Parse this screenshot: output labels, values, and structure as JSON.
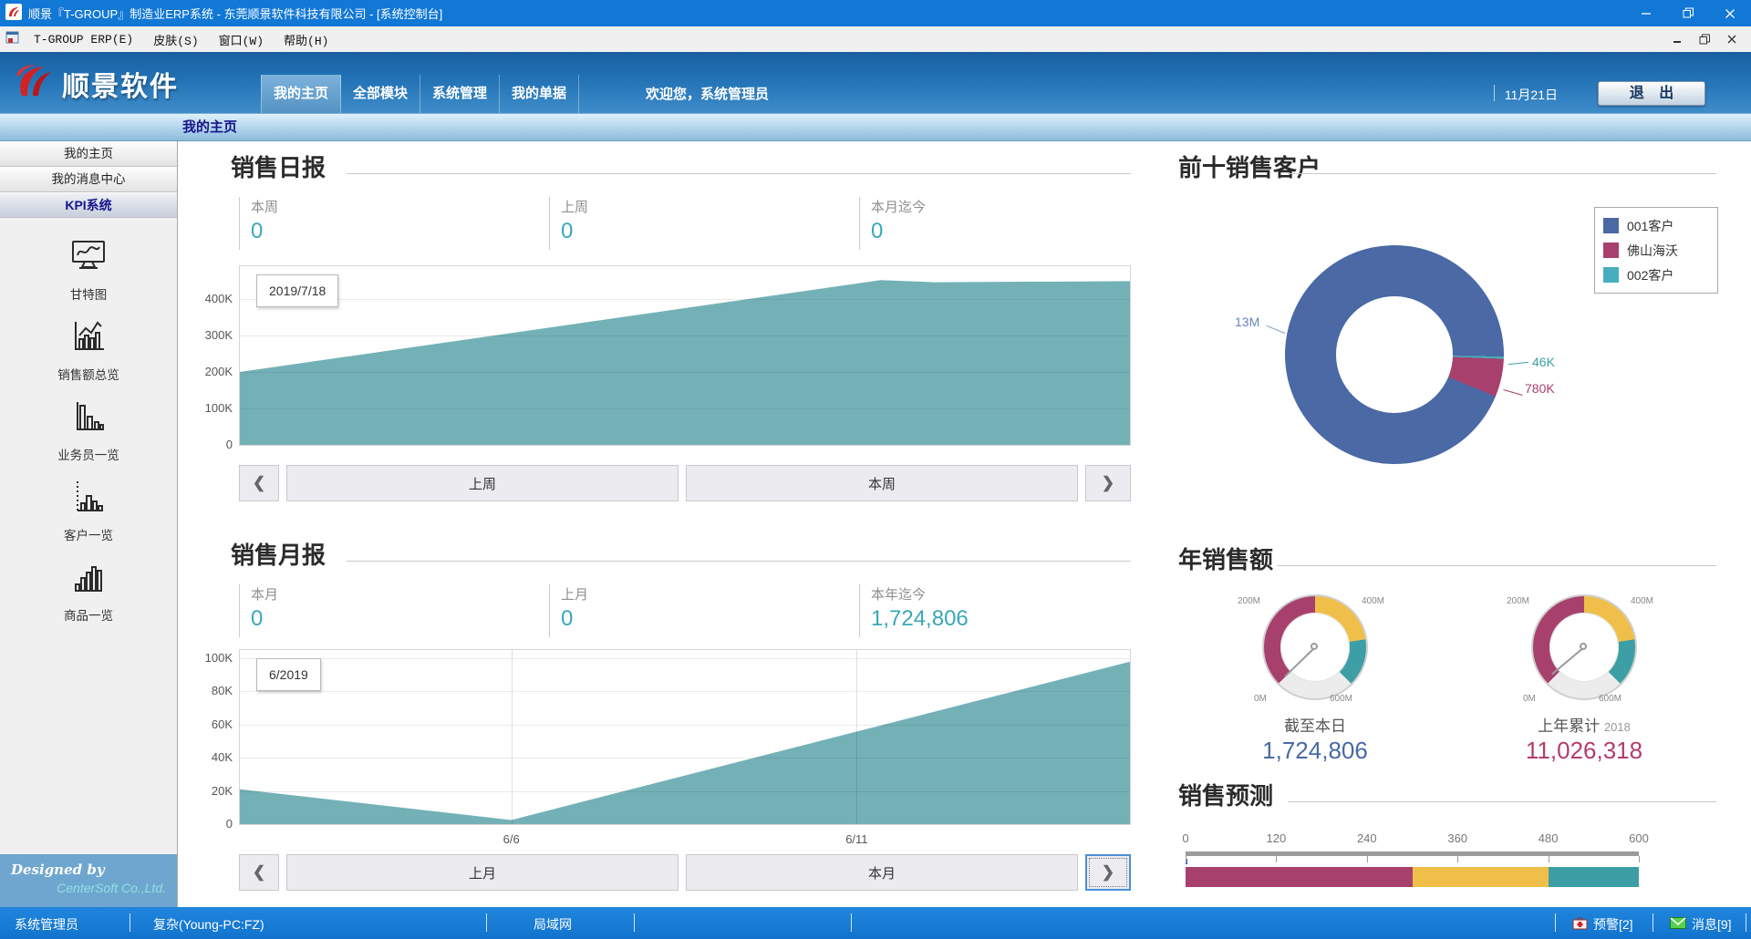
{
  "window": {
    "title": "顺景『T-GROUP』制造业ERP系统 - 东莞顺景软件科技有限公司 - [系统控制台]"
  },
  "menubar": {
    "items": [
      "T-GROUP ERP(E)",
      "皮肤(S)",
      "窗口(W)",
      "帮助(H)"
    ]
  },
  "header": {
    "logo": "顺景软件",
    "tabs": [
      {
        "label": "我的主页"
      },
      {
        "label": "全部模块"
      },
      {
        "label": "系统管理"
      },
      {
        "label": "我的单据"
      }
    ],
    "welcome": "欢迎您，系统管理员",
    "date": "11月21日",
    "exit": "退 出"
  },
  "tabstrip": {
    "active": "我的主页"
  },
  "sidebar": {
    "nav": [
      {
        "label": "我的主页"
      },
      {
        "label": "我的消息中心"
      },
      {
        "label": "KPI系统"
      }
    ],
    "modules": [
      {
        "label": "甘特图",
        "icon": "gantt-chart-icon"
      },
      {
        "label": "销售额总览",
        "icon": "sales-overview-icon"
      },
      {
        "label": "业务员一览",
        "icon": "salesman-list-icon"
      },
      {
        "label": "客户一览",
        "icon": "customer-list-icon"
      },
      {
        "label": "商品一览",
        "icon": "product-list-icon"
      }
    ],
    "designed_by": "Designed by",
    "company": "CenterSoft Co.,Ltd."
  },
  "daily": {
    "title": "销售日报",
    "stats": [
      {
        "label": "本周",
        "value": "0"
      },
      {
        "label": "上周",
        "value": "0"
      },
      {
        "label": "本月迄今",
        "value": "0"
      }
    ],
    "nav": {
      "prev": "❮",
      "range1": "上周",
      "range2": "本周",
      "next": "❯"
    },
    "chart_data": {
      "type": "area",
      "color": "#73b1b7",
      "tooltip": "2019/7/18",
      "ymax": 490000,
      "yticks": [
        {
          "v": 400000,
          "l": "400K"
        },
        {
          "v": 300000,
          "l": "300K"
        },
        {
          "v": 200000,
          "l": "200K"
        },
        {
          "v": 100000,
          "l": "100K"
        },
        {
          "v": 0,
          "l": "0"
        }
      ],
      "points": [
        [
          0,
          200000
        ],
        [
          0.72,
          452000
        ],
        [
          0.78,
          446000
        ],
        [
          1,
          449000
        ]
      ]
    }
  },
  "monthly": {
    "title": "销售月报",
    "stats": [
      {
        "label": "本月",
        "value": "0"
      },
      {
        "label": "上月",
        "value": "0"
      },
      {
        "label": "本年迄今",
        "value": "1,724,806"
      }
    ],
    "nav": {
      "prev": "❮",
      "range1": "上月",
      "range2": "本月",
      "next": "❯"
    },
    "chart_data": {
      "type": "area",
      "color": "#73b1b7",
      "tooltip": "6/2019",
      "ymax": 105000,
      "yticks": [
        {
          "v": 100000,
          "l": "100K"
        },
        {
          "v": 80000,
          "l": "80K"
        },
        {
          "v": 60000,
          "l": "60K"
        },
        {
          "v": 40000,
          "l": "40K"
        },
        {
          "v": 20000,
          "l": "20K"
        },
        {
          "v": 0,
          "l": "0"
        }
      ],
      "xticks": [
        {
          "f": 0.305,
          "l": "6/6"
        },
        {
          "f": 0.693,
          "l": "6/11"
        }
      ],
      "points": [
        [
          0,
          21000
        ],
        [
          0.305,
          2500
        ],
        [
          1,
          98000
        ]
      ]
    }
  },
  "customers": {
    "title": "前十销售客户",
    "legend": [
      {
        "label": "001客户",
        "color": "#4a69a5"
      },
      {
        "label": "佛山海沃",
        "color": "#a8406e"
      },
      {
        "label": "002客户",
        "color": "#46aebe"
      }
    ],
    "chart_data": {
      "type": "pie",
      "series": [
        {
          "name": "001客户",
          "value": 13000000,
          "label": "13M",
          "color": "#4a69a5"
        },
        {
          "name": "002客户",
          "value": 46000,
          "label": "46K",
          "color": "#46aebe"
        },
        {
          "name": "佛山海沃",
          "value": 780000,
          "label": "780K",
          "color": "#a8406e"
        }
      ],
      "blue_end_deg": 91
    }
  },
  "annual": {
    "title": "年销售额",
    "scale": {
      "min": 0,
      "max": 600000000,
      "start_deg": 225,
      "sweep_deg": 270,
      "tick_labels": {
        "t0": "0M",
        "t200": "200M",
        "t400": "400M",
        "t600": "600M"
      },
      "segments": [
        {
          "to": 300000000,
          "color": "#a8406e"
        },
        {
          "to": 480000000,
          "color": "#f0bf4a"
        },
        {
          "to": 600000000,
          "color": "#3d9fa5"
        }
      ]
    },
    "gauges": [
      {
        "caption": "截至本日",
        "year": "",
        "value": 1724806,
        "display": "1,724,806"
      },
      {
        "caption": "上年累计",
        "year": "2018",
        "value": 11026318,
        "display": "11,026,318"
      }
    ]
  },
  "forecast": {
    "title": "销售预测",
    "chart_data": {
      "type": "linear-gauge",
      "min": 0,
      "max": 600,
      "ticks": [
        "0",
        "120",
        "240",
        "360",
        "480",
        "600"
      ],
      "segments": [
        {
          "to": 300,
          "color": "#a8406e"
        },
        {
          "to": 480,
          "color": "#f0bf4a"
        },
        {
          "to": 600,
          "color": "#3d9fa5"
        }
      ]
    }
  },
  "statusbar": {
    "user": "系统管理员",
    "machine": "复杂(Young-PC:FZ)",
    "network": "局域网",
    "alerts": "预警[2]",
    "messages": "消息[9]"
  }
}
